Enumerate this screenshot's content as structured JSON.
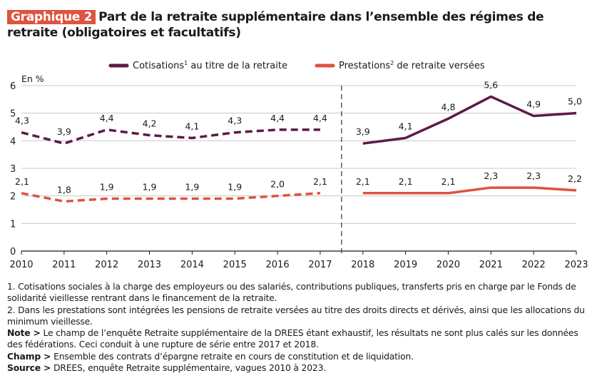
{
  "header": {
    "badge": "Graphique 2",
    "title": "Part de la retraite supplémentaire dans l’ensemble des régimes de retraite (obligatoires et facultatifs)"
  },
  "colors": {
    "badge": "#de5341",
    "cotisations": "#5c1a47",
    "prestations": "#de5341",
    "grid": "#c8c8c8",
    "axis": "#1a1a1a"
  },
  "chart_data": {
    "type": "line",
    "title": "Part de la retraite supplémentaire dans l’ensemble des régimes de retraite (obligatoires et facultatifs)",
    "ylabel": "En %",
    "xlabel": "",
    "ylim": [
      0,
      6
    ],
    "yticks": [
      "0",
      "1",
      "2",
      "3",
      "4",
      "5",
      "6"
    ],
    "x": [
      "2010",
      "2011",
      "2012",
      "2013",
      "2014",
      "2015",
      "2016",
      "2017",
      "2018",
      "2019",
      "2020",
      "2021",
      "2022",
      "2023"
    ],
    "grid": true,
    "legend_position": "top",
    "series_break": "between 2017 and 2018 (dashed before, solid after)",
    "series": [
      {
        "name": "Cotisations¹ au titre de la retraite",
        "legend_main": "Cotisations",
        "legend_sup": "1",
        "legend_rest": " au titre de la retraite",
        "values": [
          4.3,
          3.9,
          4.4,
          4.2,
          4.1,
          4.3,
          4.4,
          4.4,
          3.9,
          4.1,
          4.8,
          5.6,
          4.9,
          5.0
        ],
        "labels": [
          "4,3",
          "3,9",
          "4,4",
          "4,2",
          "4,1",
          "4,3",
          "4,4",
          "4,4",
          "3,9",
          "4,1",
          "4,8",
          "5,6",
          "4,9",
          "5,0"
        ]
      },
      {
        "name": "Prestations² de retraite versées",
        "legend_main": "Prestations",
        "legend_sup": "2",
        "legend_rest": " de retraite versées",
        "values": [
          2.1,
          1.8,
          1.9,
          1.9,
          1.9,
          1.9,
          2.0,
          2.1,
          2.1,
          2.1,
          2.1,
          2.3,
          2.3,
          2.2
        ],
        "labels": [
          "2,1",
          "1,8",
          "1,9",
          "1,9",
          "1,9",
          "1,9",
          "2,0",
          "2,1",
          "2,1",
          "2,1",
          "2,1",
          "2,3",
          "2,3",
          "2,2"
        ]
      }
    ]
  },
  "notes": {
    "n1": "1. Cotisations sociales à la charge des employeurs ou des salariés, contributions publiques, transferts pris en charge par le Fonds de solidarité vieillesse rentrant dans le financement de la retraite.",
    "n2": "2. Dans les prestations sont intégrées les pensions de retraite versées au titre des droits directs et dérivés, ainsi que les allocations du minimum vieillesse.",
    "note_label": "Note >",
    "note_text": " Le champ de l’enquête Retraite supplémentaire de la DREES étant exhaustif, les résultats ne sont plus calés sur les données des fédérations. Ceci conduit à une rupture de série entre 2017 et 2018.",
    "champ_label": "Champ >",
    "champ_text": " Ensemble des contrats d’épargne retraite en cours de constitution et de liquidation.",
    "source_label": "Source >",
    "source_text": " DREES, enquête Retraite supplémentaire, vagues 2010 à 2023."
  }
}
